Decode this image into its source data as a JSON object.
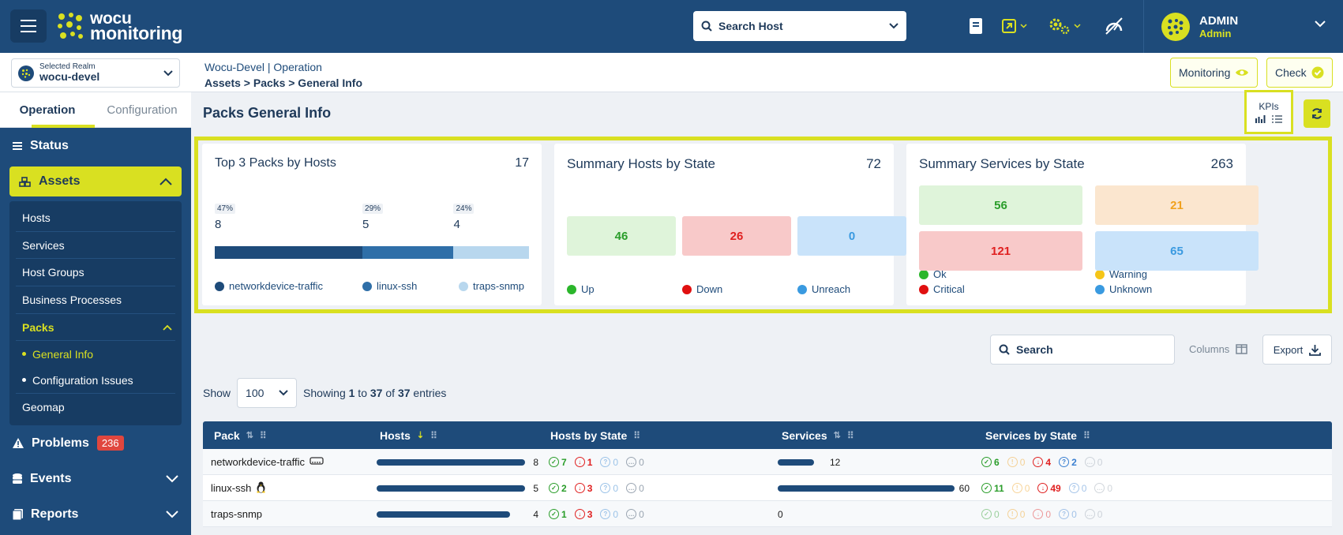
{
  "topbar": {
    "logo_line1": "wocu",
    "logo_line2": "monitoring",
    "search_placeholder": "Search Host",
    "user_name": "ADMIN",
    "user_role": "Admin"
  },
  "realm": {
    "label": "Selected Realm",
    "value": "wocu-devel"
  },
  "breadcrumb": {
    "top": "Wocu-Devel | Operation",
    "bottom": "Assets > Packs > General Info"
  },
  "header_buttons": {
    "monitoring": "Monitoring",
    "check": "Check"
  },
  "sidebar": {
    "tabs": [
      "Operation",
      "Configuration"
    ],
    "status": "Status",
    "assets": "Assets",
    "asset_items": [
      "Hosts",
      "Services",
      "Host Groups",
      "Business Processes"
    ],
    "packs": "Packs",
    "pack_children": [
      "General Info",
      "Configuration Issues"
    ],
    "geomap": "Geomap",
    "problems": "Problems",
    "problems_count": "236",
    "events": "Events",
    "reports": "Reports"
  },
  "main": {
    "title": "Packs General Info",
    "kpis_label": "KPIs"
  },
  "cards": {
    "top_packs": {
      "title": "Top 3 Packs by Hosts",
      "total": "17",
      "packs": [
        {
          "name": "networkdevice-traffic",
          "pct": "47%",
          "value": "8",
          "share": 0.47,
          "color": "#1e4b7a"
        },
        {
          "name": "linux-ssh",
          "pct": "29%",
          "value": "5",
          "share": 0.29,
          "color": "#2f6fa8"
        },
        {
          "name": "traps-snmp",
          "pct": "24%",
          "value": "4",
          "share": 0.24,
          "color": "#b8d7ee"
        }
      ]
    },
    "hosts_state": {
      "title": "Summary Hosts by State",
      "total": "72",
      "states": [
        {
          "name": "Up",
          "value": "46",
          "bg": "#dff4da",
          "fg": "#2a9d2a",
          "dot": "#2bb62b"
        },
        {
          "name": "Down",
          "value": "26",
          "bg": "#f8c9c9",
          "fg": "#e02020",
          "dot": "#e01010"
        },
        {
          "name": "Unreach",
          "value": "0",
          "bg": "#c9e3fa",
          "fg": "#3a9ae0",
          "dot": "#3a9ae0"
        }
      ]
    },
    "services_state": {
      "title": "Summary Services by State",
      "total": "263",
      "states": [
        {
          "name": "Ok",
          "value": "56",
          "bg": "#dff4da",
          "fg": "#2a9d2a",
          "dot": "#2bb62b"
        },
        {
          "name": "Warning",
          "value": "21",
          "bg": "#fbe6cf",
          "fg": "#f0a11e",
          "dot": "#f5c518"
        },
        {
          "name": "Critical",
          "value": "121",
          "bg": "#f8c9c9",
          "fg": "#e02020",
          "dot": "#e01010"
        },
        {
          "name": "Unknown",
          "value": "65",
          "bg": "#c9e3fa",
          "fg": "#3a9ae0",
          "dot": "#3a9ae0"
        }
      ]
    }
  },
  "toolbar": {
    "search": "Search",
    "columns": "Columns",
    "export": "Export"
  },
  "show": {
    "label": "Show",
    "value": "100",
    "info_pre": "Showing ",
    "from": "1",
    "mid1": " to ",
    "to": "37",
    "mid2": " of ",
    "total": "37",
    "post": " entries"
  },
  "table": {
    "headers": [
      "Pack",
      "Hosts",
      "Hosts by State",
      "Services",
      "Services by State"
    ],
    "rows": [
      {
        "pack": "networkdevice-traffic",
        "icon": "network-switch-icon",
        "hosts": "8",
        "hosts_share": 1.0,
        "hs": [
          "7",
          "1",
          "0",
          "0"
        ],
        "services": "12",
        "services_share": 0.2,
        "ss": [
          "6",
          "0",
          "4",
          "2",
          "0"
        ]
      },
      {
        "pack": "linux-ssh",
        "icon": "linux-penguin-icon",
        "hosts": "5",
        "hosts_share": 1.0,
        "hs": [
          "2",
          "3",
          "0",
          "0"
        ],
        "services": "60",
        "services_share": 1.0,
        "ss": [
          "11",
          "0",
          "49",
          "0",
          "0"
        ]
      },
      {
        "pack": "traps-snmp",
        "icon": "",
        "hosts": "4",
        "hosts_share": 0.9,
        "hs": [
          "1",
          "3",
          "0",
          "0"
        ],
        "services": "0",
        "services_share": 0,
        "ss": [
          "0",
          "0",
          "0",
          "0",
          "0"
        ]
      }
    ]
  }
}
